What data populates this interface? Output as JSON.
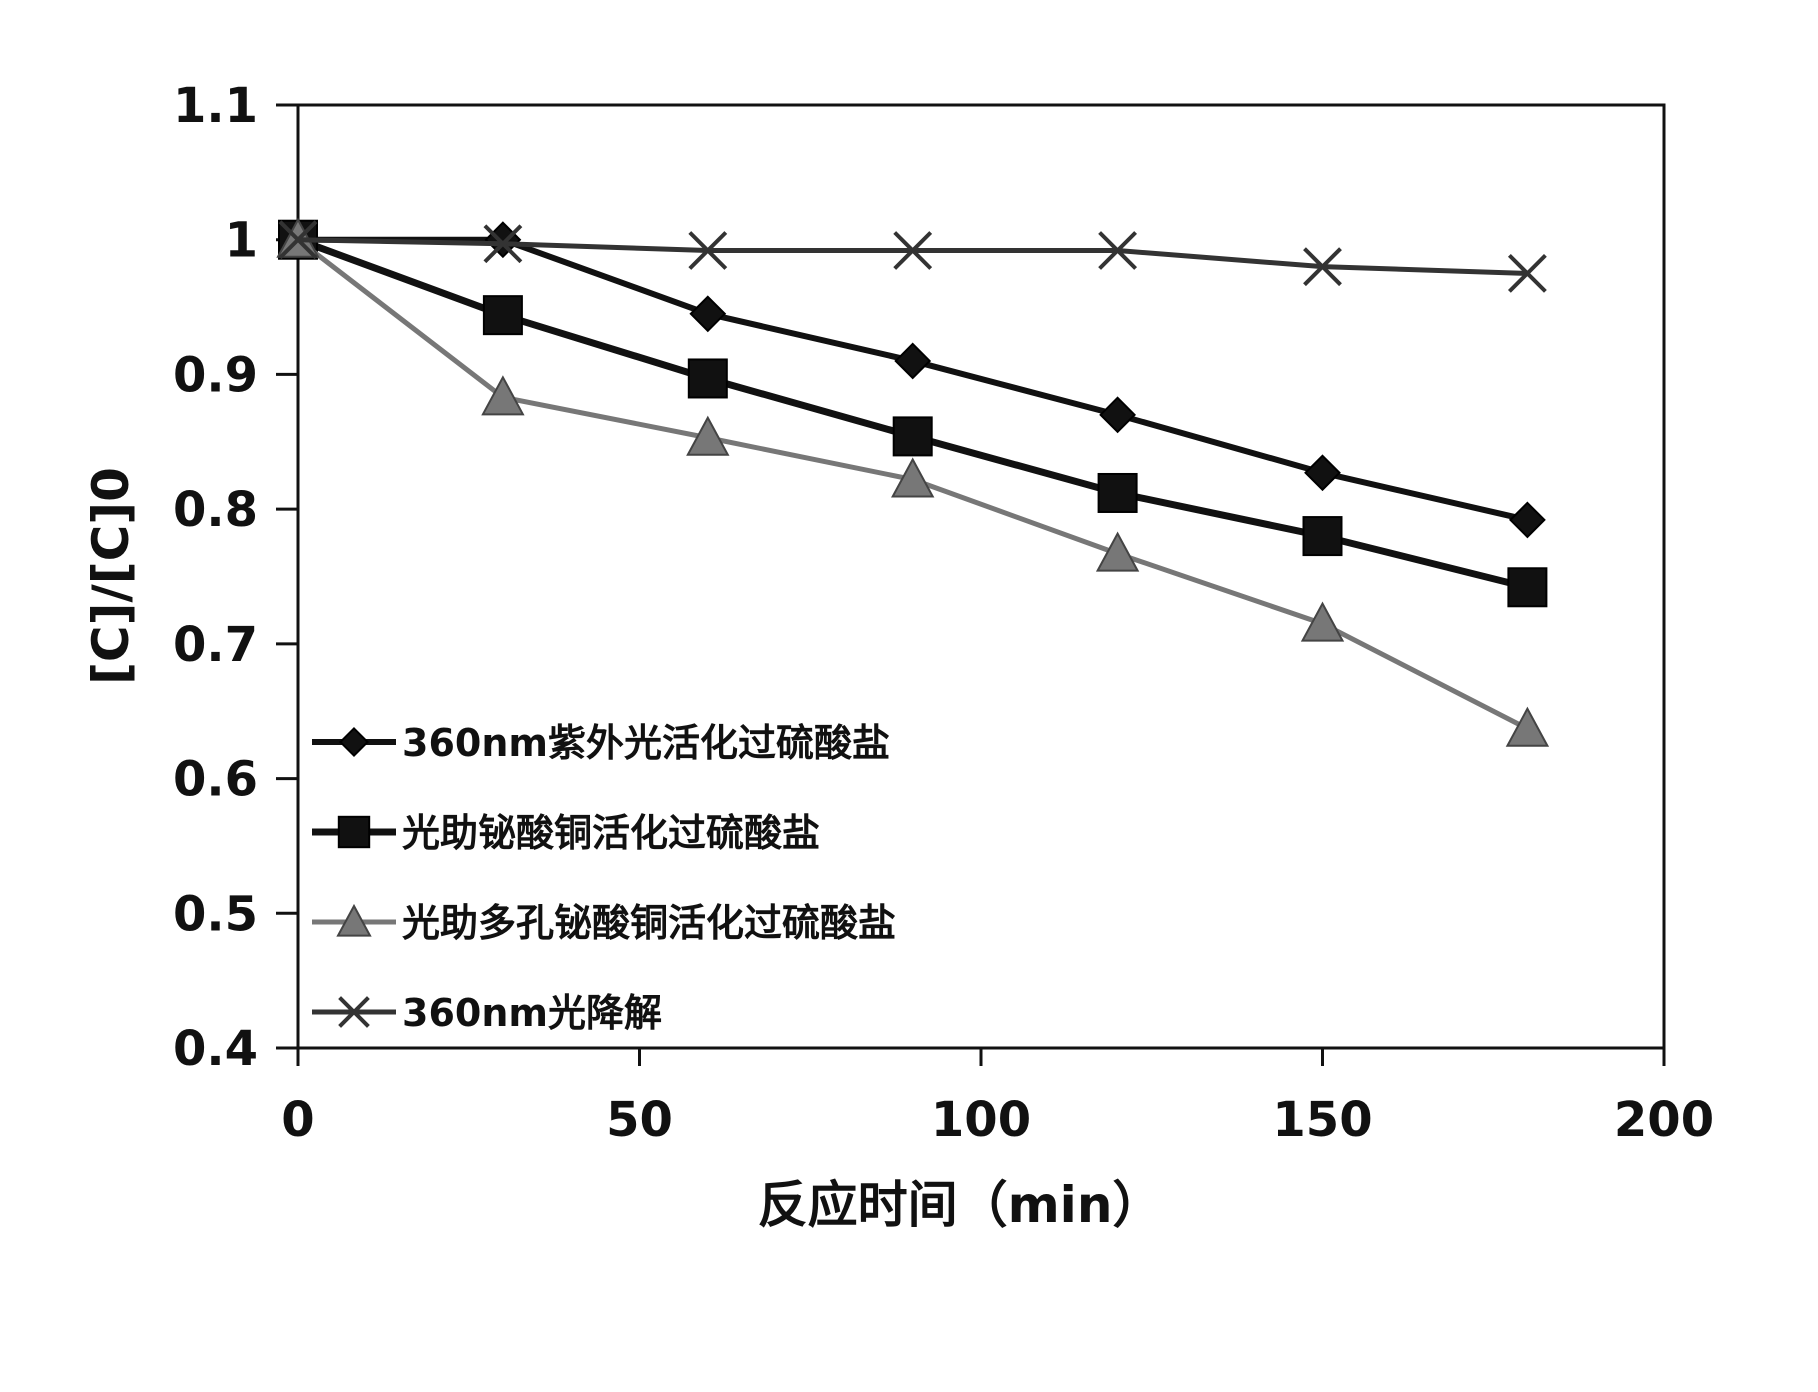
{
  "chart_data": {
    "type": "line",
    "title": "",
    "xlabel": "反应时间（min）",
    "ylabel": "[C]/[C]0",
    "xlim": [
      0,
      200
    ],
    "ylim": [
      0.4,
      1.1
    ],
    "x_ticks": [
      "0",
      "50",
      "100",
      "150",
      "200"
    ],
    "y_ticks": [
      "0.4",
      "0.5",
      "0.6",
      "0.7",
      "0.8",
      "0.9",
      "1",
      "1.1"
    ],
    "x": [
      0,
      30,
      60,
      90,
      120,
      150,
      180
    ],
    "grid": false,
    "legend_position": "lower-left",
    "series": [
      {
        "name": "360nm紫外光活化过硫酸盐",
        "values": [
          1.0,
          1.0,
          0.945,
          0.91,
          0.87,
          0.827,
          0.792
        ],
        "marker": "diamond",
        "color": "#111111"
      },
      {
        "name": "光助铋酸铜活化过硫酸盐",
        "values": [
          1.0,
          0.944,
          0.897,
          0.854,
          0.812,
          0.78,
          0.742
        ],
        "marker": "square",
        "color": "#111111"
      },
      {
        "name": "光助多孔铋酸铜活化过硫酸盐",
        "values": [
          1.0,
          0.883,
          0.853,
          0.822,
          0.767,
          0.715,
          0.637
        ],
        "marker": "triangle",
        "color": "#777777"
      },
      {
        "name": "360nm光降解",
        "values": [
          1.0,
          0.997,
          0.992,
          0.992,
          0.992,
          0.98,
          0.975
        ],
        "marker": "x",
        "color": "#333333"
      }
    ]
  }
}
